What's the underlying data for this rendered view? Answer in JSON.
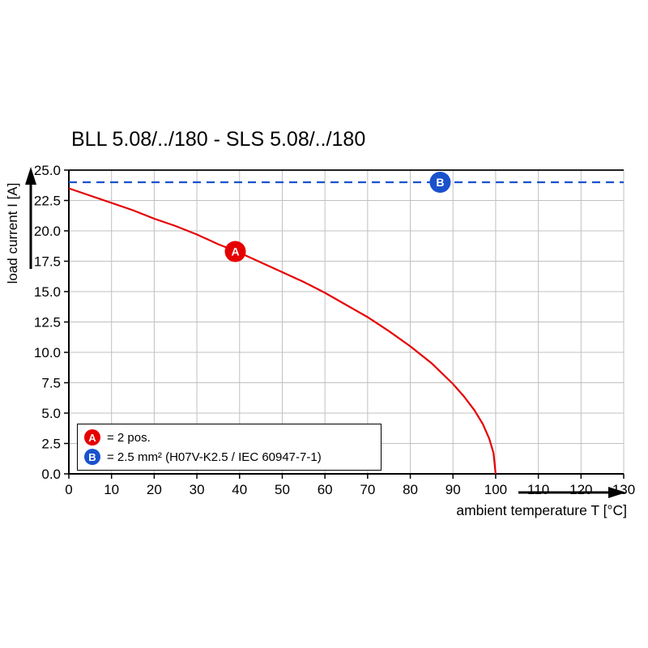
{
  "chart": {
    "title": "BLL 5.08/../180 - SLS 5.08/../180",
    "xlabel": "ambient temperature T [°C]",
    "ylabel": "load current I [A]"
  },
  "chart_data": {
    "type": "line",
    "title": "BLL 5.08/../180 - SLS 5.08/../180",
    "xlabel": "ambient temperature T [°C]",
    "ylabel": "load current I [A]",
    "xlim": [
      0,
      130
    ],
    "ylim": [
      0,
      25
    ],
    "x_ticks": [
      0,
      10,
      20,
      30,
      40,
      50,
      60,
      70,
      80,
      90,
      100,
      110,
      120,
      130
    ],
    "y_ticks": [
      0,
      2.5,
      5,
      7.5,
      10,
      12.5,
      15,
      17.5,
      20,
      22.5,
      25
    ],
    "grid": true,
    "legend_position": "bottom-left",
    "series": [
      {
        "name": "A",
        "label": "= 2 pos.",
        "color": "#e60000",
        "style": "solid",
        "points": [
          [
            0,
            23.5
          ],
          [
            5,
            22.9
          ],
          [
            10,
            22.3
          ],
          [
            15,
            21.7
          ],
          [
            20,
            21.0
          ],
          [
            25,
            20.4
          ],
          [
            30,
            19.7
          ],
          [
            35,
            18.9
          ],
          [
            40,
            18.2
          ],
          [
            45,
            17.4
          ],
          [
            50,
            16.6
          ],
          [
            55,
            15.8
          ],
          [
            60,
            14.9
          ],
          [
            65,
            13.9
          ],
          [
            70,
            12.9
          ],
          [
            75,
            11.75
          ],
          [
            80,
            10.5
          ],
          [
            85,
            9.1
          ],
          [
            90,
            7.4
          ],
          [
            92.5,
            6.4
          ],
          [
            95,
            5.25
          ],
          [
            97,
            4.1
          ],
          [
            98.5,
            2.9
          ],
          [
            99.5,
            1.7
          ],
          [
            100,
            0
          ]
        ]
      },
      {
        "name": "B",
        "label": "= 2.5 mm² (H07V-K2.5 / IEC 60947-7-1)",
        "color": "#1a52cc",
        "style": "dashed",
        "points": [
          [
            0,
            24
          ],
          [
            130,
            24
          ]
        ]
      }
    ],
    "markers": [
      {
        "label": "A",
        "x": 39,
        "y": 18.3,
        "color": "#e60000"
      },
      {
        "label": "B",
        "x": 87,
        "y": 24,
        "color": "#1a52cc"
      }
    ]
  },
  "legend": {
    "items": [
      {
        "symbol": "A",
        "color": "#e60000",
        "text": "= 2 pos."
      },
      {
        "symbol": "B",
        "color": "#1a52cc",
        "text": "= 2.5 mm² (H07V-K2.5 / IEC 60947-7-1)"
      }
    ]
  },
  "colors": {
    "grid": "#c0c0c0",
    "axis": "#000000",
    "background": "#ffffff"
  }
}
